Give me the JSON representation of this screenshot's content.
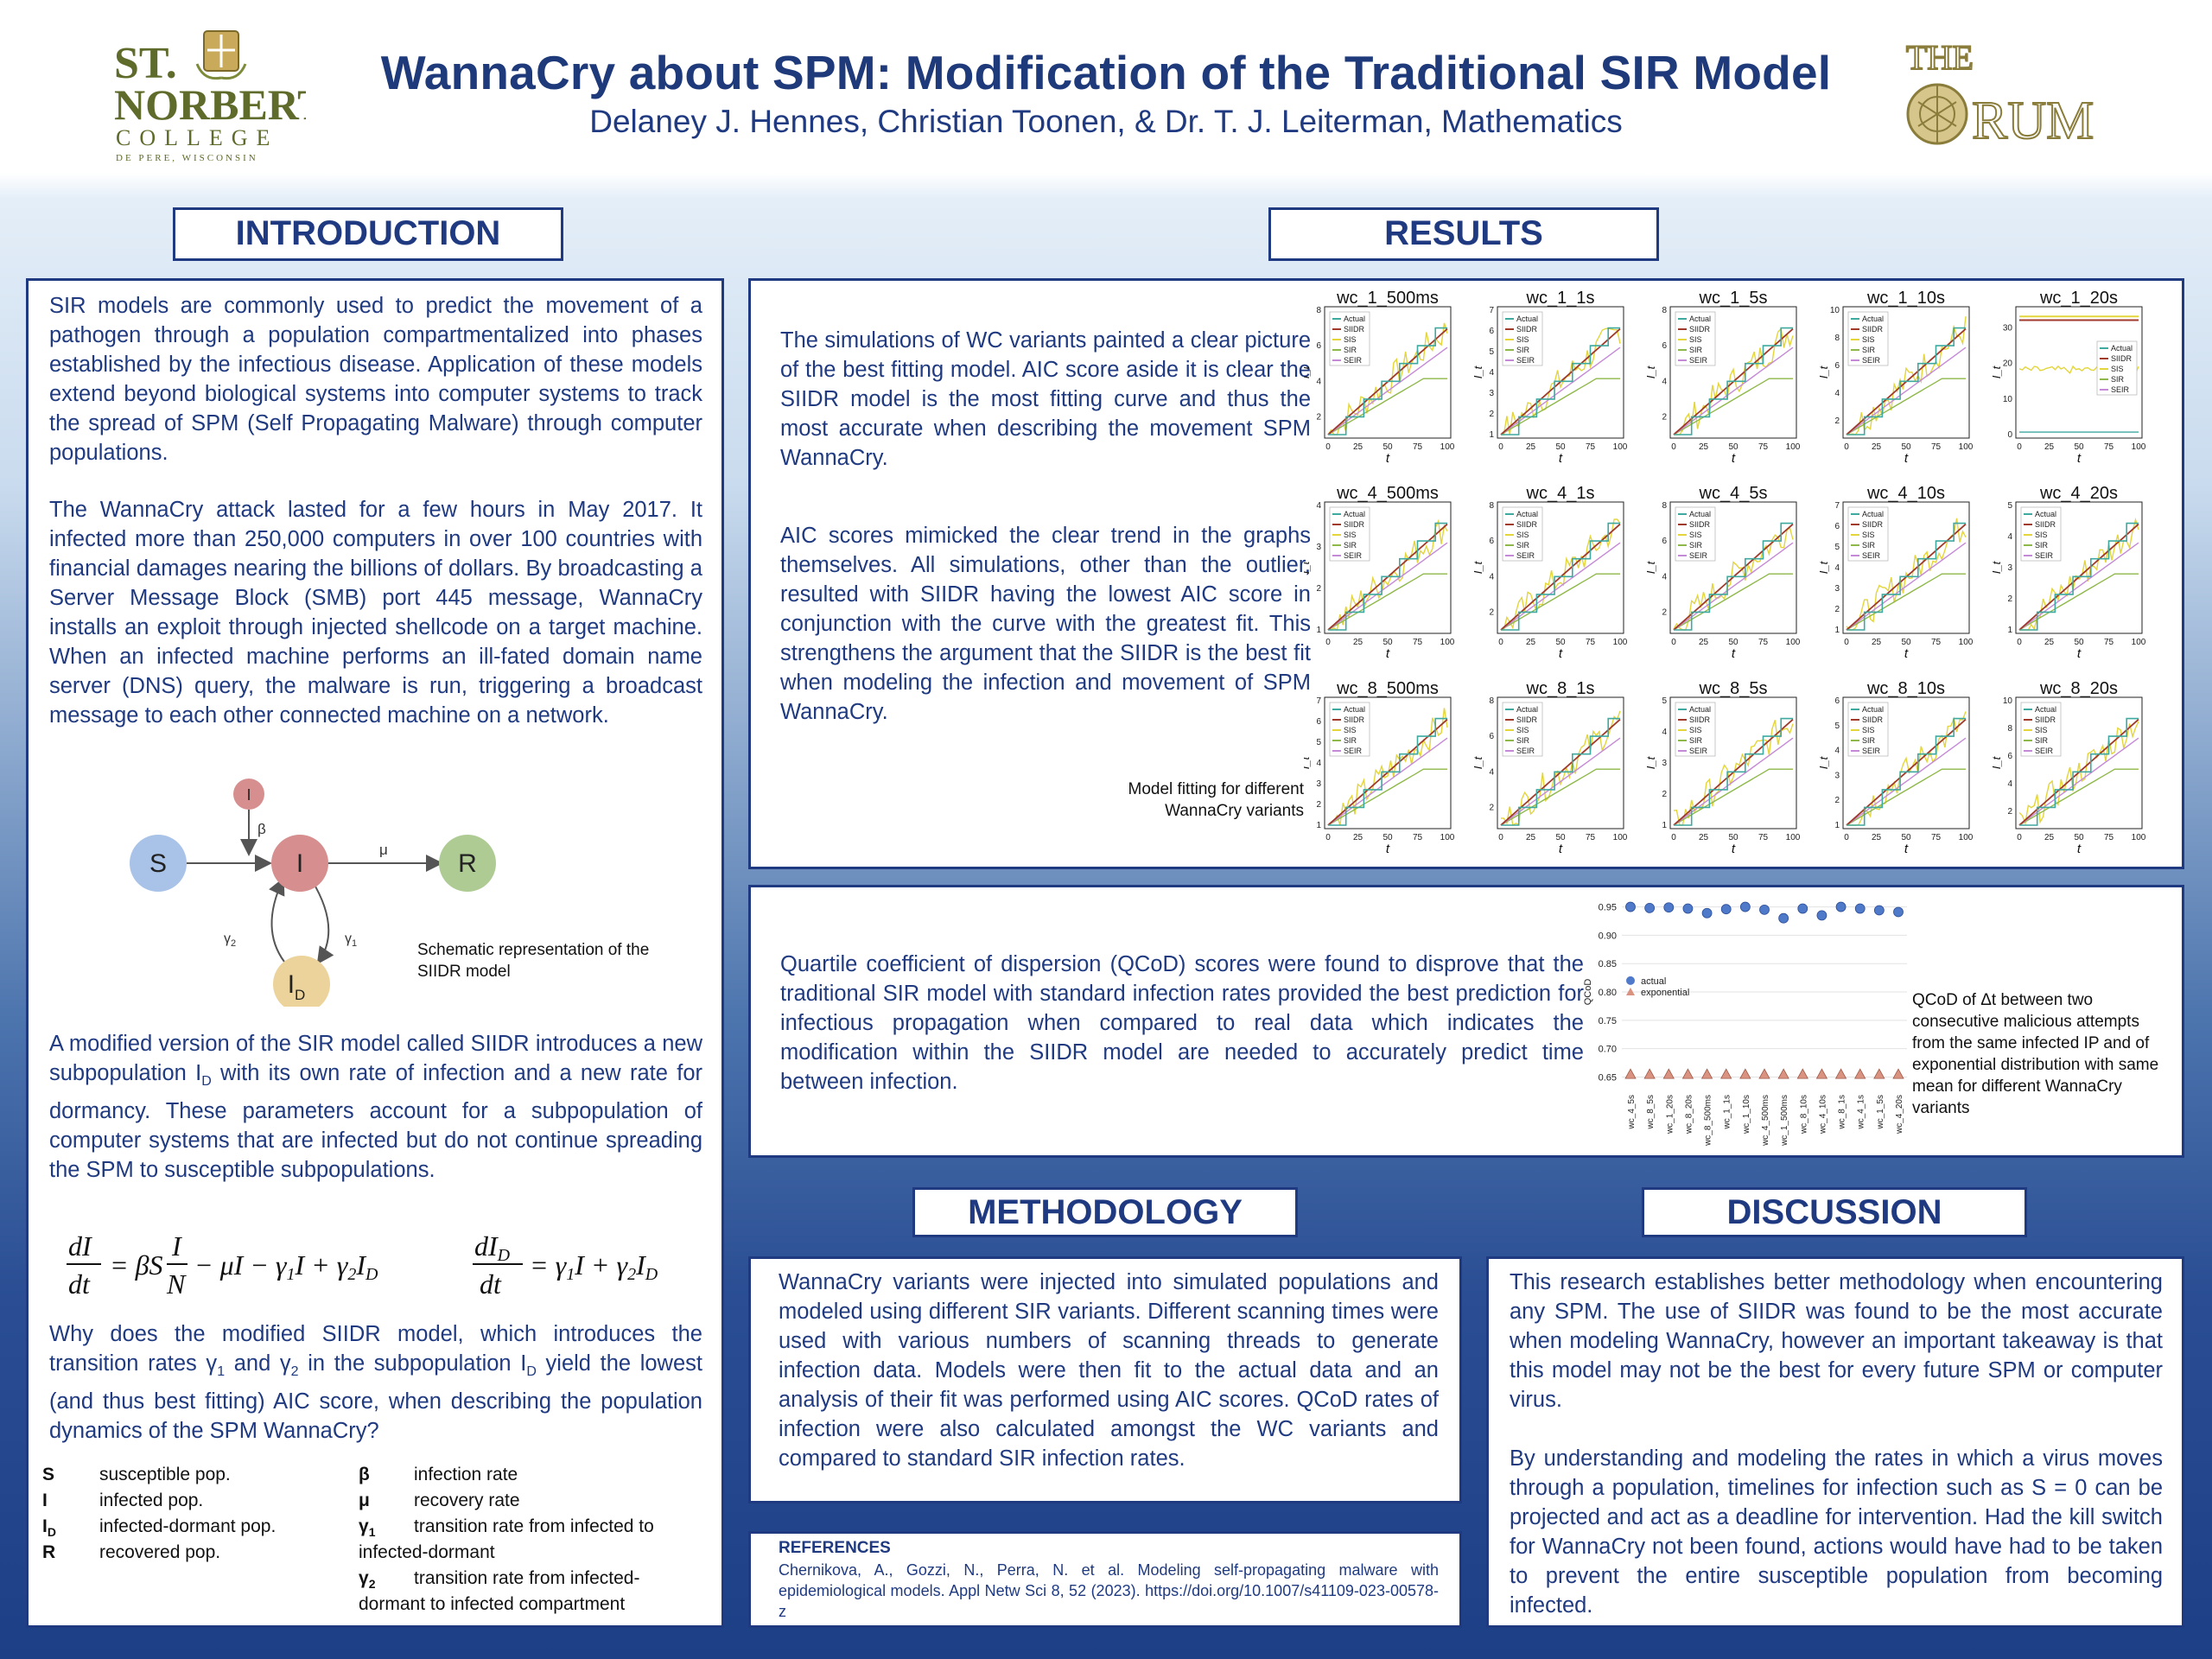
{
  "header": {
    "title": "WannaCry about SPM: Modification of the Traditional SIR Model",
    "authors": "Delaney J. Hennes, Christian Toonen, & Dr. T. J. Leiterman, Mathematics",
    "logo_left": "ST. NORBERT COLLEGE DE PERE, WISCONSIN",
    "logo_right": "THE FORUM"
  },
  "introduction": {
    "heading": "INTRODUCTION",
    "p1": "SIR models are commonly used to predict the movement of a pathogen through a population compartmentalized into phases established by the infectious disease. Application of these models extend beyond biological systems into computer systems to track the spread of SPM (Self Propagating Malware) through computer populations.",
    "p2": "The WannaCry attack lasted for a few hours in May 2017. It infected more than 250,000 computers in over 100 countries with financial damages nearing the billions of dollars. By broadcasting a Server Message Block (SMB) port 445 message, WannaCry installs an exploit through injected shellcode on a target machine. When an infected machine performs an ill-fated domain name server (DNS) query, the malware is run, triggering a broadcast message to each other connected machine on a network.",
    "schematic_caption": "Schematic representation of the SIIDR model",
    "p3_a": "A modified version of the SIR model called SIIDR introduces a new subpopulation I",
    "p3_b": "D",
    "p3_c": " with its own rate of infection and a new rate for dormancy. These parameters account for a subpopulation of computer systems that are infected but do not continue spreading the SPM to susceptible subpopulations.",
    "question_a": "Why does the modified SIIDR model, which introduces the transition rates γ",
    "question_b": "1",
    "question_c": " and γ",
    "question_d": "2",
    "question_e": " in the subpopulation I",
    "question_f": "D",
    "question_g": " yield the lowest (and thus best fitting) AIC score, when describing the population dynamics of the SPM WannaCry?",
    "legend_left": [
      {
        "sym": "S",
        "sub": "",
        "def": "susceptible pop."
      },
      {
        "sym": "I",
        "sub": "",
        "def": "infected pop."
      },
      {
        "sym": "I",
        "sub": "D",
        "def": "infected-dormant pop."
      },
      {
        "sym": "R",
        "sub": "",
        "def": "recovered pop."
      }
    ],
    "legend_right": [
      {
        "sym": "β",
        "sub": "",
        "def": "infection rate"
      },
      {
        "sym": "μ",
        "sub": "",
        "def": "recovery rate"
      },
      {
        "sym": "γ",
        "sub": "1",
        "def": "transition rate from infected to",
        "def2": "infected-dormant"
      },
      {
        "sym": "γ",
        "sub": "2",
        "def": "transition rate from infected-",
        "def2": "dormant to infected compartment"
      }
    ]
  },
  "diagram": {
    "nodes": {
      "S": "S",
      "I": "I",
      "R": "R",
      "Itop": "I",
      "ID": "I",
      "ID_sub": "D"
    },
    "edges": {
      "beta": "β",
      "mu": "μ",
      "g1": "γ",
      "g1_sub": "1",
      "g2": "γ",
      "g2_sub": "2"
    },
    "colors": {
      "S": "#a9c3e8",
      "I": "#d68e8e",
      "R": "#aecb94",
      "ID": "#ecd39b"
    }
  },
  "results": {
    "heading": "RESULTS",
    "p1": "The simulations of WC variants painted a clear picture of the best fitting model. AIC score aside it is clear the SIIDR model is the most fitting curve and thus the most accurate when describing the movement SPM WannaCry.",
    "p2": "AIC scores mimicked the clear trend in the graphs themselves. All simulations, other than the outlier, resulted with SIIDR having the lowest AIC score in conjunction with the curve with the greatest fit. This strengthens the argument that the SIIDR is the best fit when modeling the infection and movement of SPM WannaCry.",
    "grid_caption_1": "Model fitting for different",
    "grid_caption_2": "WannaCry variants",
    "p3": "Quartile coefficient of dispersion (QCoD) scores were found to disprove that the traditional SIR model with standard infection rates provided the best prediction for infectious propagation when compared to real data which indicates the modification within the SIIDR model are needed to accurately predict time between infection.",
    "qcod_caption": "QCoD of Δt between two consecutive malicious attempts from the same infected IP and of exponential distribution with same mean for different WannaCry variants"
  },
  "chart_data": [
    {
      "type": "line",
      "title": "Model fitting for different WannaCry variants (3x5 grid)",
      "subplot_titles": [
        "wc_1_500ms",
        "wc_1_1s",
        "wc_1_5s",
        "wc_1_10s",
        "wc_1_20s",
        "wc_4_500ms",
        "wc_4_1s",
        "wc_4_5s",
        "wc_4_10s",
        "wc_4_20s",
        "wc_8_500ms",
        "wc_8_1s",
        "wc_8_5s",
        "wc_8_10s",
        "wc_8_20s"
      ],
      "xlabel": "t",
      "ylabel": "I_t",
      "xlim": [
        0,
        100
      ],
      "x_ticks": [
        0,
        25,
        50,
        75,
        100
      ],
      "ylims": [
        [
          1,
          8
        ],
        [
          1,
          7
        ],
        [
          1,
          8
        ],
        [
          1,
          10
        ],
        [
          0,
          35
        ],
        [
          1,
          4
        ],
        [
          1,
          8
        ],
        [
          1,
          8
        ],
        [
          1,
          7
        ],
        [
          1,
          5
        ],
        [
          1,
          7
        ],
        [
          1,
          8
        ],
        [
          1,
          5
        ],
        [
          1,
          6
        ],
        [
          1,
          10
        ]
      ],
      "legend": [
        "Actual",
        "SIIDR",
        "SIS",
        "SIR",
        "SEIR"
      ],
      "series_colors": {
        "Actual": "#3fa9a0",
        "SIIDR": "#a03a2b",
        "SIS": "#e3d53b",
        "SIR": "#8fb84a",
        "SEIR": "#c58ad6"
      }
    },
    {
      "type": "scatter",
      "title": "QCoD",
      "ylabel": "QCoD",
      "ylim": [
        0.64,
        0.96
      ],
      "y_ticks": [
        0.65,
        0.7,
        0.75,
        0.8,
        0.85,
        0.9,
        0.95
      ],
      "categories": [
        "wc_4_5s",
        "wc_8_5s",
        "wc_1_20s",
        "wc_8_20s",
        "wc_8_500ms",
        "wc_1_1s",
        "wc_1_10s",
        "wc_4_500ms",
        "wc_1_500ms",
        "wc_8_10s",
        "wc_4_10s",
        "wc_8_1s",
        "wc_4_1s",
        "wc_1_5s",
        "wc_4_20s"
      ],
      "series": [
        {
          "name": "actual",
          "values": [
            0.95,
            0.948,
            0.949,
            0.947,
            0.939,
            0.946,
            0.95,
            0.945,
            0.93,
            0.947,
            0.935,
            0.95,
            0.947,
            0.944,
            0.941
          ]
        },
        {
          "name": "exponential",
          "values": [
            0.655,
            0.655,
            0.655,
            0.655,
            0.655,
            0.655,
            0.655,
            0.655,
            0.655,
            0.655,
            0.655,
            0.655,
            0.655,
            0.655,
            0.655
          ]
        }
      ],
      "legend": [
        "actual",
        "exponential"
      ],
      "colors": {
        "actual": "#4f79c9",
        "exponential": "#d99380"
      }
    }
  ],
  "methodology": {
    "heading": "METHODOLOGY",
    "p1": "WannaCry variants were injected into simulated populations and modeled using different SIR variants. Different scanning times were used with various numbers of scanning threads to generate infection data. Models were then fit to the actual data and an analysis of their fit was performed using AIC scores. QCoD rates of infection were also calculated amongst the WC variants and compared to standard SIR infection rates."
  },
  "references": {
    "heading": "REFERENCES",
    "text": "Chernikova, A., Gozzi, N., Perra, N. et al. Modeling self-propagating malware with epidemiological models. Appl Netw Sci 8, 52 (2023). https://doi.org/10.1007/s41109-023-00578-z"
  },
  "discussion": {
    "heading": "DISCUSSION",
    "p1": "This research establishes better methodology when encountering any SPM. The use of SIIDR was found to be the most accurate when modeling WannaCry, however an important takeaway is that this model may not be the best for every future SPM or computer virus.",
    "p2": "By understanding and modeling the rates in which a virus moves through a population, timelines for infection such as S = 0 can be projected and act as a deadline for intervention. Had the kill switch for WannaCry not been found, actions would have had to be taken to prevent the entire susceptible population from becoming infected."
  }
}
